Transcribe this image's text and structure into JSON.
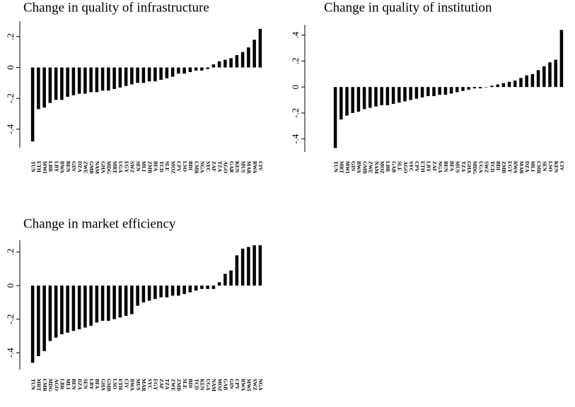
{
  "chart_data": [
    {
      "type": "bar",
      "title": "Change in quality of infrastructure",
      "color": "#000000",
      "categories": [
        "TUN",
        "ETH",
        "MWI",
        "LBR",
        "LBY",
        "BWA",
        "BEN",
        "GIN",
        "DZA",
        "ZWE",
        "GMB",
        "NAM",
        "GHA",
        "MDG",
        "MRT",
        "UGA",
        "EGY",
        "SWZ",
        "SEN",
        "MLI",
        "ZMB",
        "BFA",
        "TCD",
        "SLE",
        "MOZ",
        "CPV",
        "LSO",
        "BDI",
        "CMR",
        "NGA",
        "SYC",
        "ZAF",
        "TZA",
        "AGO",
        "GAB",
        "KEN",
        "MUS",
        "MAR",
        "RWA",
        "CIV"
      ],
      "values": [
        -0.48,
        -0.27,
        -0.26,
        -0.23,
        -0.21,
        -0.21,
        -0.19,
        -0.18,
        -0.17,
        -0.17,
        -0.16,
        -0.16,
        -0.15,
        -0.15,
        -0.14,
        -0.13,
        -0.12,
        -0.11,
        -0.1,
        -0.1,
        -0.09,
        -0.09,
        -0.08,
        -0.07,
        -0.06,
        -0.04,
        -0.04,
        -0.03,
        -0.02,
        -0.02,
        -0.01,
        0.02,
        0.04,
        0.05,
        0.06,
        0.08,
        0.1,
        0.13,
        0.18,
        0.25
      ],
      "ylim": [
        -0.52,
        0.3
      ],
      "yticks": [
        {
          "value": 0.2,
          "label": ".2"
        },
        0,
        {
          "value": -0.2,
          "label": "-.2"
        },
        {
          "value": -0.4,
          "label": "-.4"
        }
      ]
    },
    {
      "type": "bar",
      "title": "Change in quality of institution",
      "color": "#000000",
      "categories": [
        "TUN",
        "MRT",
        "MWI",
        "GIN",
        "BWA",
        "GMB",
        "ZWE",
        "NAM",
        "MOZ",
        "LBR",
        "GAB",
        "SLE",
        "AGO",
        "SYC",
        "CPV",
        "ETH",
        "LBY",
        "ZAF",
        "NGA",
        "BEN",
        "BFA",
        "MUS",
        "TZA",
        "GHA",
        "MDG",
        "UGA",
        "SWZ",
        "TCD",
        "BDI",
        "ZMB",
        "EGY",
        "RWA",
        "MAR",
        "DZA",
        "MLI",
        "CMR",
        "SEN",
        "LSO",
        "KEN",
        "CIV"
      ],
      "values": [
        -0.47,
        -0.25,
        -0.22,
        -0.2,
        -0.19,
        -0.17,
        -0.16,
        -0.15,
        -0.14,
        -0.14,
        -0.13,
        -0.12,
        -0.11,
        -0.1,
        -0.09,
        -0.08,
        -0.07,
        -0.07,
        -0.06,
        -0.06,
        -0.05,
        -0.04,
        -0.03,
        -0.02,
        -0.01,
        -0.01,
        0,
        0.01,
        0.02,
        0.03,
        0.04,
        0.05,
        0.07,
        0.09,
        0.1,
        0.13,
        0.16,
        0.19,
        0.21,
        0.44
      ],
      "ylim": [
        -0.5,
        0.48
      ],
      "yticks": [
        {
          "value": 0.4,
          "label": ".4"
        },
        {
          "value": 0.2,
          "label": ".2"
        },
        0,
        {
          "value": -0.2,
          "label": "-.2"
        },
        {
          "value": -0.4,
          "label": "-.4"
        }
      ]
    },
    {
      "type": "bar",
      "title": "Change in market efficiency",
      "color": "#000000",
      "categories": [
        "TUN",
        "MRT",
        "CMR",
        "MDG",
        "AGO",
        "LBR",
        "MLI",
        "BEN",
        "DZA",
        "SEN",
        "LBY",
        "BFA",
        "GHA",
        "GMB",
        "LSO",
        "ETH",
        "CIV",
        "BWA",
        "MUS",
        "MAR",
        "SYC",
        "EGY",
        "ZAF",
        "TZA",
        "ZWE",
        "ZMB",
        "SLE",
        "BDI",
        "TCD",
        "KEN",
        "UGA",
        "NAM",
        "MOZ",
        "GAB",
        "GIN",
        "CPV",
        "RWA",
        "MWI",
        "SWZ",
        "NGA"
      ],
      "values": [
        -0.46,
        -0.42,
        -0.39,
        -0.33,
        -0.31,
        -0.29,
        -0.28,
        -0.27,
        -0.26,
        -0.25,
        -0.24,
        -0.22,
        -0.21,
        -0.21,
        -0.2,
        -0.19,
        -0.18,
        -0.17,
        -0.12,
        -0.1,
        -0.09,
        -0.08,
        -0.07,
        -0.07,
        -0.06,
        -0.06,
        -0.05,
        -0.04,
        -0.03,
        -0.02,
        -0.02,
        -0.02,
        0.02,
        0.07,
        0.09,
        0.18,
        0.22,
        0.23,
        0.24,
        0.24
      ],
      "ylim": [
        -0.5,
        0.27
      ],
      "yticks": [
        {
          "value": 0.2,
          "label": ".2"
        },
        0,
        {
          "value": -0.2,
          "label": "-.2"
        },
        {
          "value": -0.4,
          "label": "-.4"
        }
      ]
    }
  ]
}
